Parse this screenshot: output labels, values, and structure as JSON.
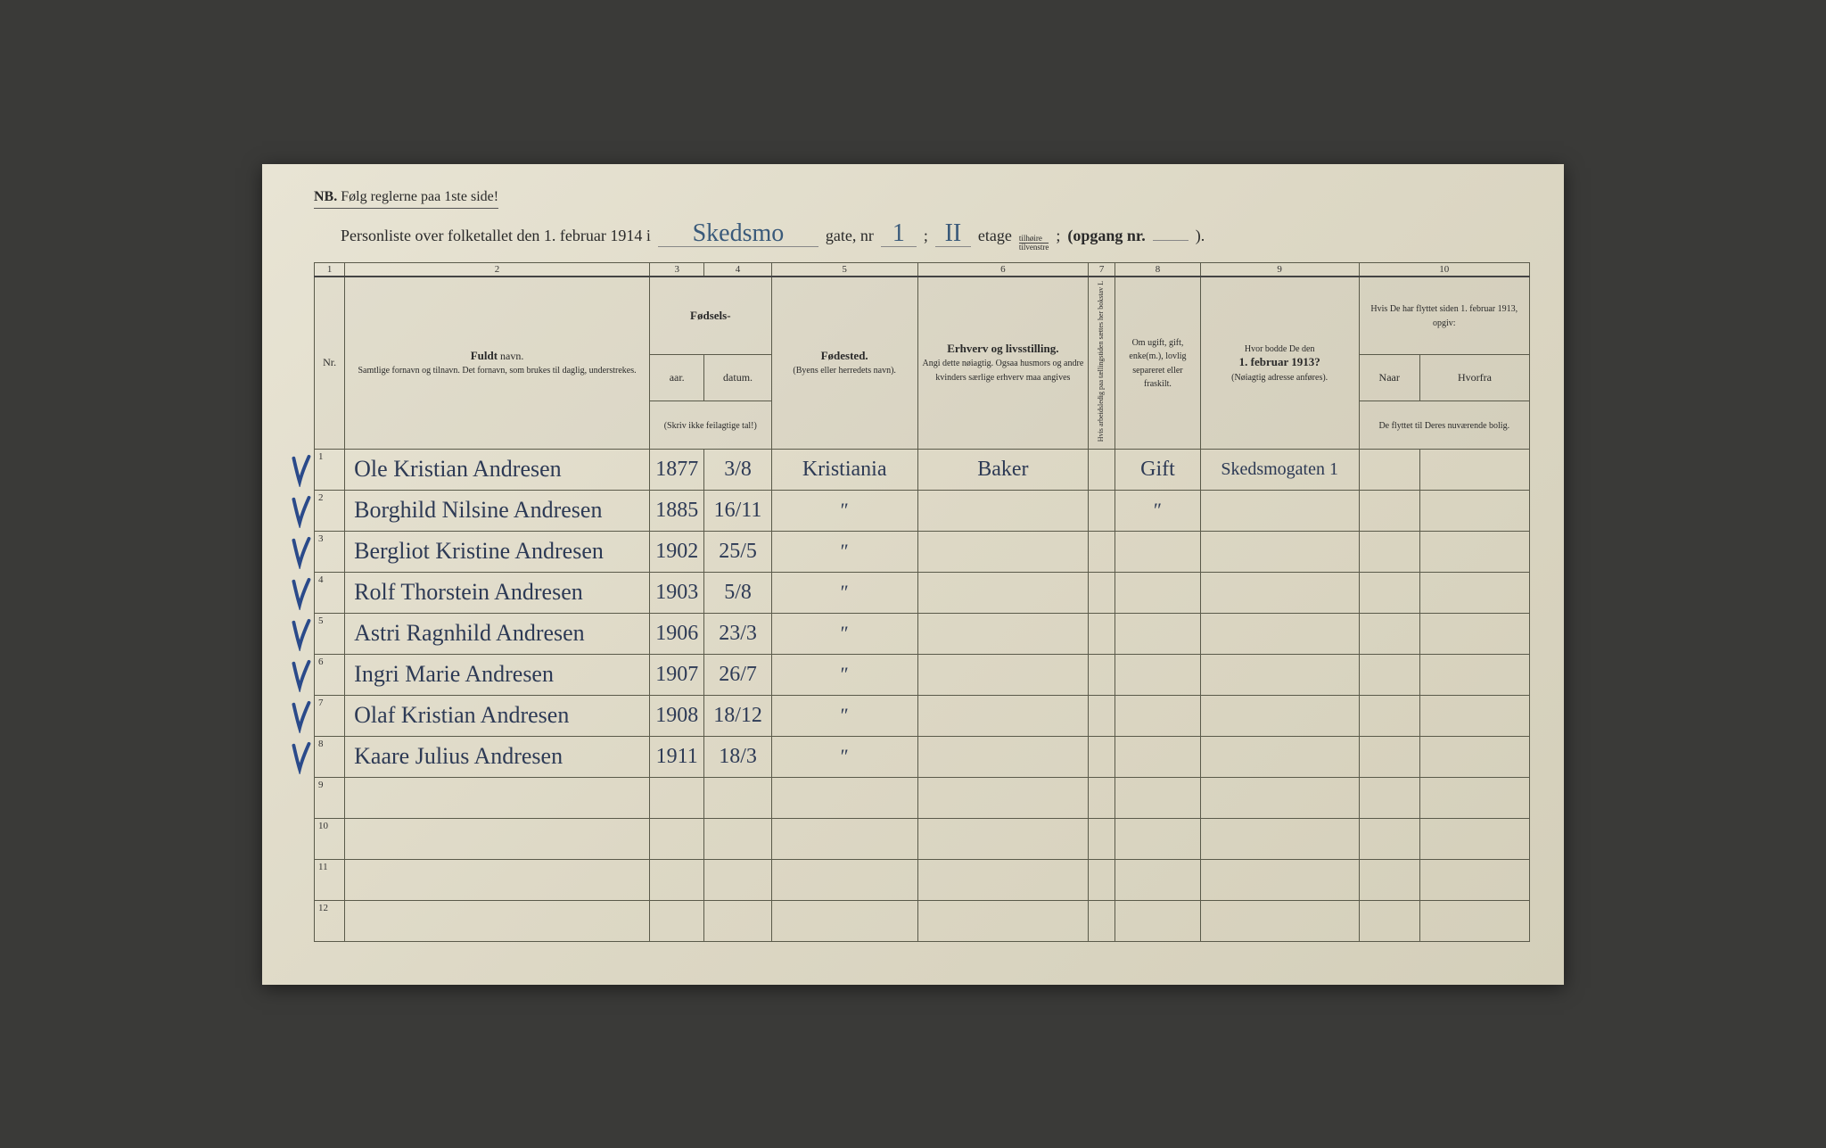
{
  "header": {
    "nb_prefix": "NB.",
    "nb_text": "Følg reglerne paa 1ste side!",
    "title_prefix": "Personliste over folketallet den 1. februar 1914 i",
    "street_value": "Skedsmo",
    "gate_label": "gate, nr",
    "gate_value": "1",
    "semicolon": ";",
    "floor_value": "II",
    "etage_label": "etage",
    "side_top": "tilhøire",
    "side_bottom": "tilvenstre",
    "semicolon2": ";",
    "opgang_label": "(opgang nr.",
    "opgang_value": "",
    "close_paren": ")."
  },
  "colnums": [
    "1",
    "2",
    "3",
    "4",
    "5",
    "6",
    "7",
    "8",
    "9",
    "10"
  ],
  "columns": {
    "nr": "Nr.",
    "name_title": "Fuldt",
    "name_title2": "navn.",
    "name_sub": "Samtlige fornavn og tilnavn. Det fornavn, som brukes til daglig, understrekes.",
    "birth_group": "Fødsels-",
    "year": "aar.",
    "date": "datum.",
    "birth_note": "(Skriv ikke feilagtige tal!)",
    "birthplace": "Fødested.",
    "birthplace_sub": "(Byens eller herredets navn).",
    "occupation": "Erhverv og livsstilling.",
    "occupation_sub": "Angi dette nøiagtig. Ogsaa husmors og andre kvinders særlige erhverv maa angives",
    "col7": "Hvis arbeidsledig paa tællingstiden sættes her bokstav L",
    "marital": "Om ugift, gift, enke(m.), lovlig separeret eller fraskilt.",
    "prev_addr": "Hvor bodde De den",
    "prev_addr_bold": "1. februar 1913?",
    "prev_addr_sub": "(Nøiagtig adresse anføres).",
    "moved_title": "Hvis De har flyttet siden 1. februar 1913, opgiv:",
    "moved_naar": "Naar",
    "moved_hvorfra": "Hvorfra",
    "moved_sub": "De flyttet til Deres nuværende bolig."
  },
  "rows": [
    {
      "nr": "1",
      "check": true,
      "name": "Ole Kristian Andresen",
      "year": "1877",
      "date": "3/8",
      "birthplace": "Kristiania",
      "occ": "Baker",
      "v": "",
      "ms": "Gift",
      "addr": "Skedsmogaten 1",
      "m1": "",
      "m2": ""
    },
    {
      "nr": "2",
      "check": true,
      "name": "Borghild Nilsine Andresen",
      "year": "1885",
      "date": "16/11",
      "birthplace": "″",
      "occ": "",
      "v": "",
      "ms": "″",
      "addr": "",
      "m1": "",
      "m2": ""
    },
    {
      "nr": "3",
      "check": true,
      "name": "Bergliot Kristine Andresen",
      "year": "1902",
      "date": "25/5",
      "birthplace": "″",
      "occ": "",
      "v": "",
      "ms": "",
      "addr": "",
      "m1": "",
      "m2": ""
    },
    {
      "nr": "4",
      "check": true,
      "name": "Rolf Thorstein Andresen",
      "year": "1903",
      "date": "5/8",
      "birthplace": "″",
      "occ": "",
      "v": "",
      "ms": "",
      "addr": "",
      "m1": "",
      "m2": ""
    },
    {
      "nr": "5",
      "check": true,
      "name": "Astri Ragnhild Andresen",
      "year": "1906",
      "date": "23/3",
      "birthplace": "″",
      "occ": "",
      "v": "",
      "ms": "",
      "addr": "",
      "m1": "",
      "m2": ""
    },
    {
      "nr": "6",
      "check": true,
      "name": "Ingri Marie Andresen",
      "year": "1907",
      "date": "26/7",
      "birthplace": "″",
      "occ": "",
      "v": "",
      "ms": "",
      "addr": "",
      "m1": "",
      "m2": ""
    },
    {
      "nr": "7",
      "check": true,
      "name": "Olaf Kristian Andresen",
      "year": "1908",
      "date": "18/12",
      "birthplace": "″",
      "occ": "",
      "v": "",
      "ms": "",
      "addr": "",
      "m1": "",
      "m2": ""
    },
    {
      "nr": "8",
      "check": true,
      "name": "Kaare Julius Andresen",
      "year": "1911",
      "date": "18/3",
      "birthplace": "″",
      "occ": "",
      "v": "",
      "ms": "",
      "addr": "",
      "m1": "",
      "m2": ""
    },
    {
      "nr": "9",
      "check": false,
      "name": "",
      "year": "",
      "date": "",
      "birthplace": "",
      "occ": "",
      "v": "",
      "ms": "",
      "addr": "",
      "m1": "",
      "m2": ""
    },
    {
      "nr": "10",
      "check": false,
      "name": "",
      "year": "",
      "date": "",
      "birthplace": "",
      "occ": "",
      "v": "",
      "ms": "",
      "addr": "",
      "m1": "",
      "m2": ""
    },
    {
      "nr": "11",
      "check": false,
      "name": "",
      "year": "",
      "date": "",
      "birthplace": "",
      "occ": "",
      "v": "",
      "ms": "",
      "addr": "",
      "m1": "",
      "m2": ""
    },
    {
      "nr": "12",
      "check": false,
      "name": "",
      "year": "",
      "date": "",
      "birthplace": "",
      "occ": "",
      "v": "",
      "ms": "",
      "addr": "",
      "m1": "",
      "m2": ""
    }
  ],
  "style": {
    "ink_color": "#2d3a55",
    "check_color": "#2a4a8a",
    "paper_bg": "#e0dbc8",
    "rule_color": "#5a5a4a"
  }
}
